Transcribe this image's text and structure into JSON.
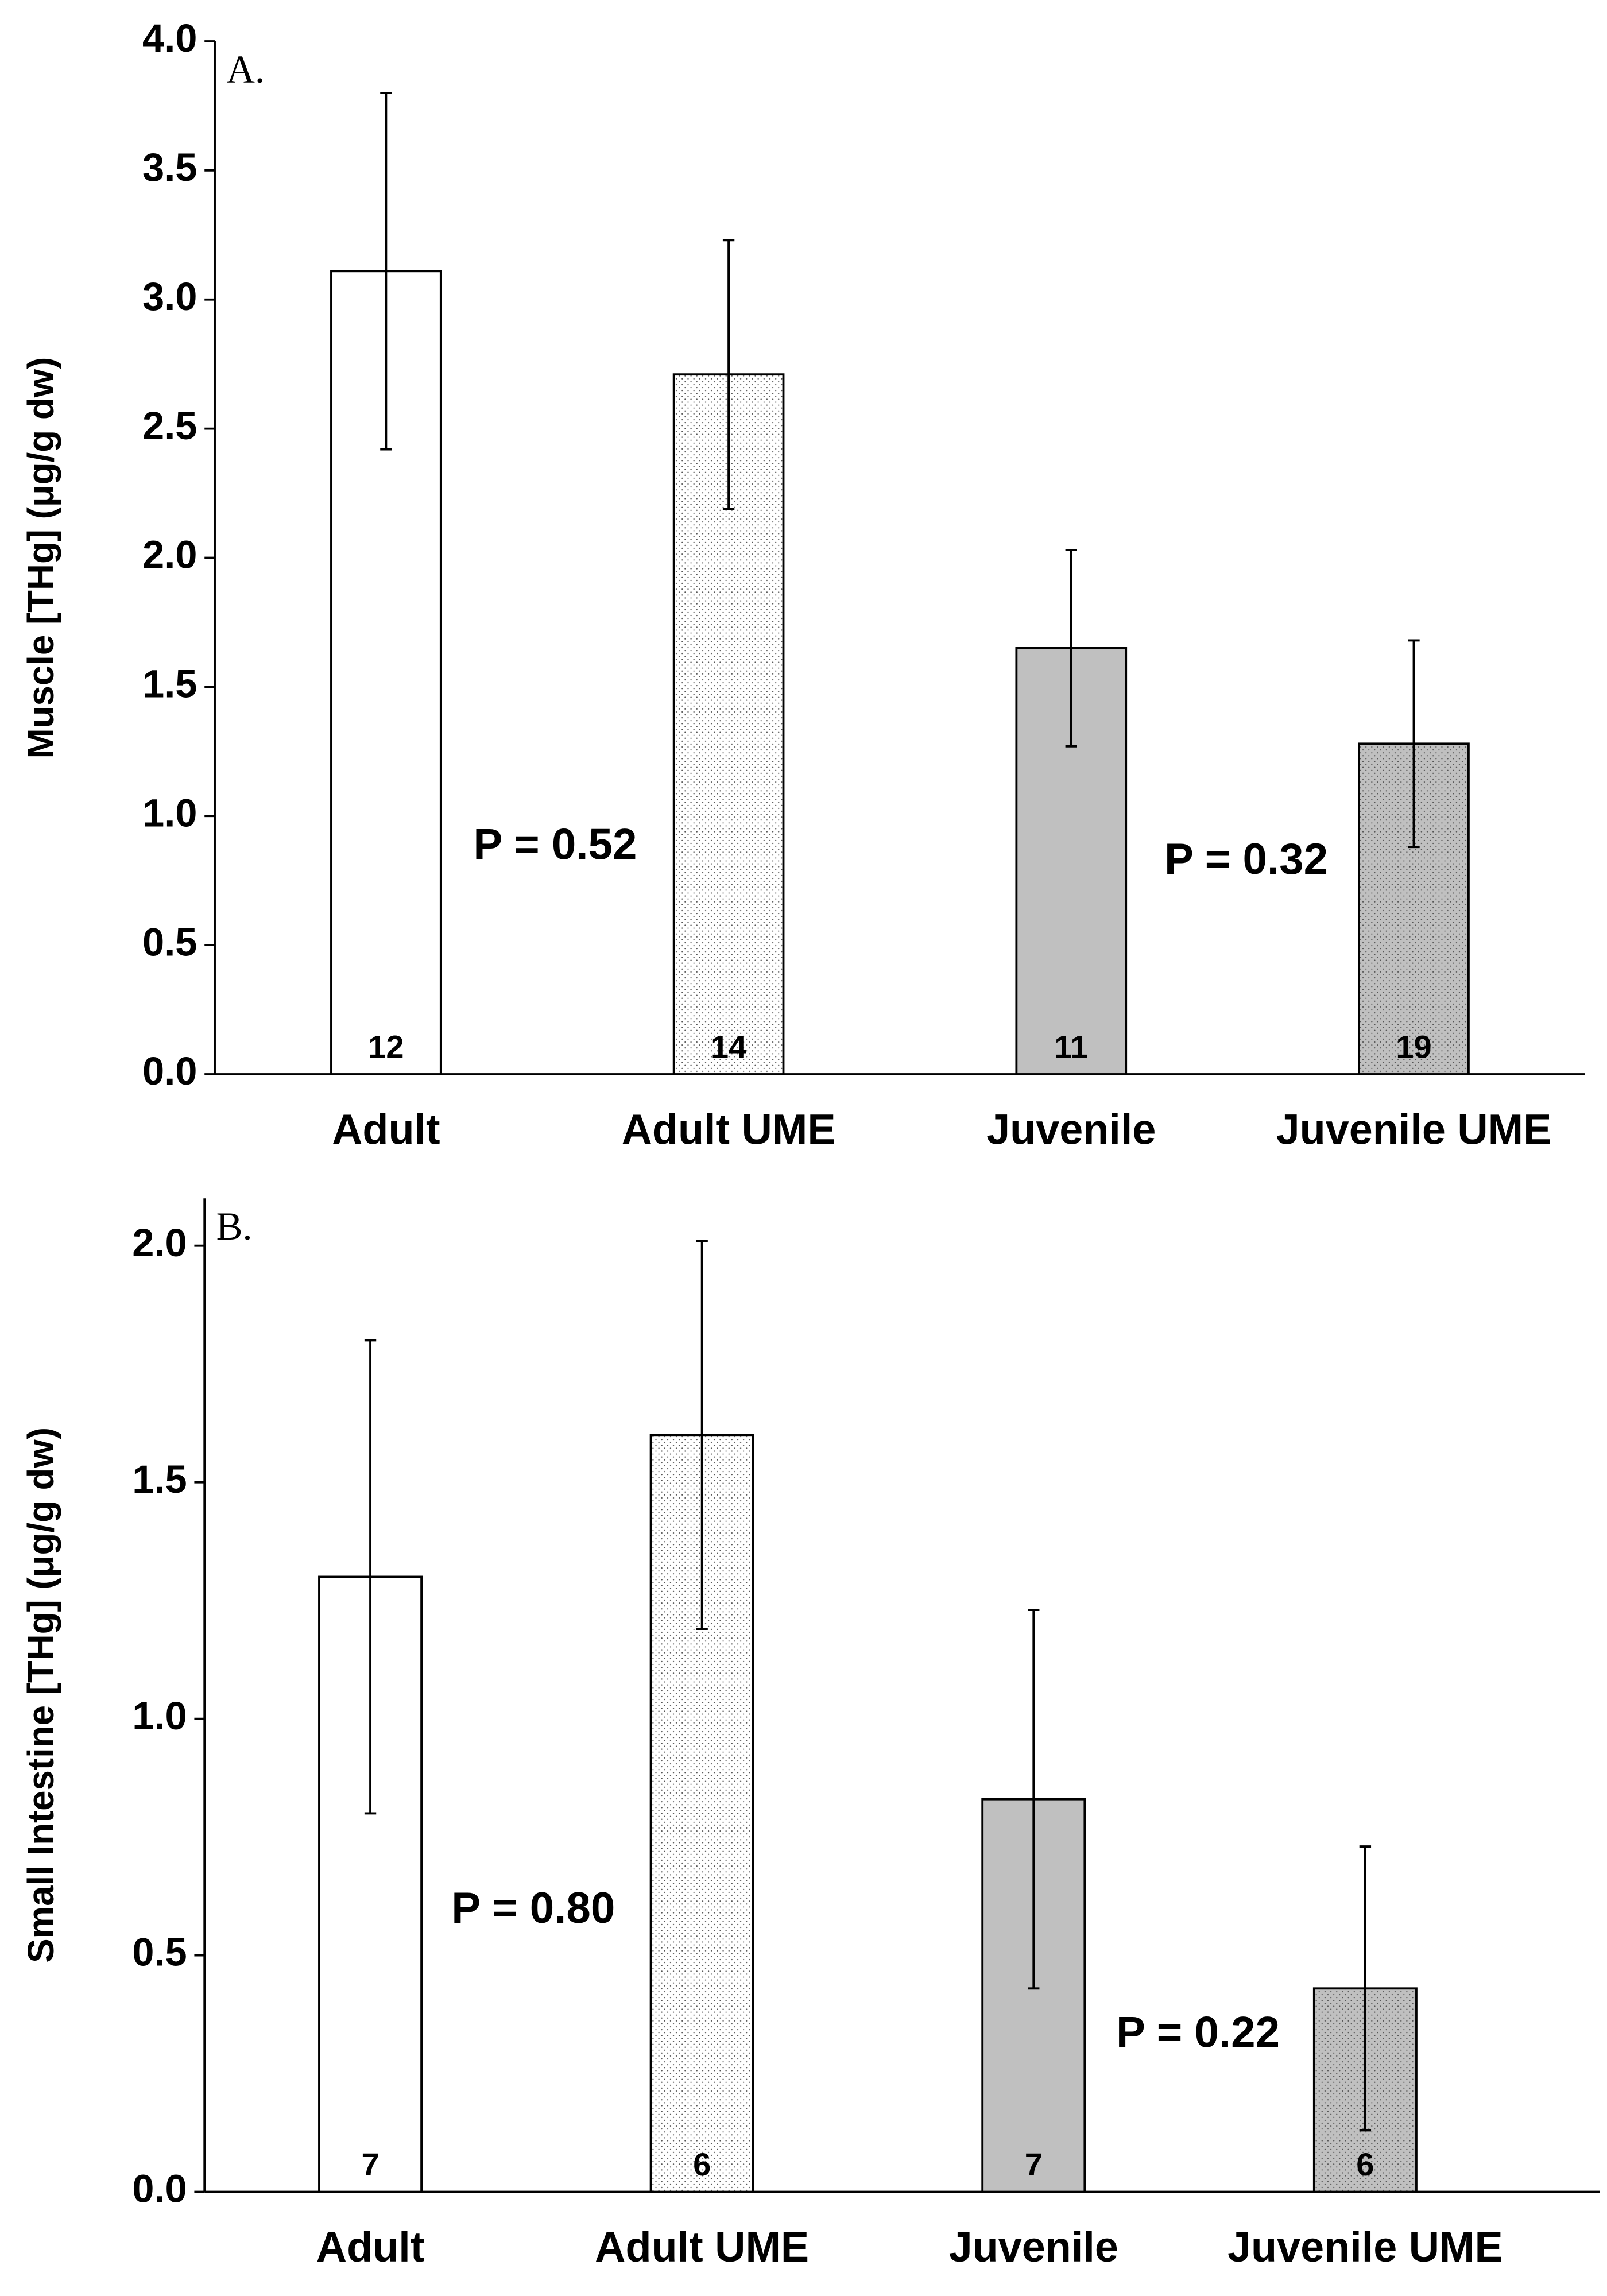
{
  "chart_data": [
    {
      "type": "bar",
      "panel_label": "A.",
      "y_label": "Muscle [THg] (μg/g dw)",
      "categories": [
        "Adult",
        "Adult UME",
        "Juvenile",
        "Juvenile UME"
      ],
      "values": [
        3.11,
        2.71,
        1.65,
        1.28
      ],
      "errors": [
        0.69,
        0.52,
        0.38,
        0.4
      ],
      "sample_sizes": [
        12,
        14,
        11,
        19
      ],
      "colors": [
        "#ffffff",
        "#ffffff",
        "#c0c0c0",
        "#c0c0c0"
      ],
      "stippled": [
        false,
        true,
        false,
        true
      ],
      "annotations": [
        "P = 0.52",
        "P = 0.32"
      ],
      "ylim": [
        0,
        4
      ],
      "yticks": [
        {
          "value": 0,
          "label": "0.0"
        },
        {
          "value": 0.5,
          "label": "0.5"
        },
        {
          "value": 1,
          "label": "1.0"
        },
        {
          "value": 1.5,
          "label": "1.5"
        },
        {
          "value": 2,
          "label": "2.0"
        },
        {
          "value": 2.5,
          "label": "2.5"
        },
        {
          "value": 3,
          "label": "3.0"
        },
        {
          "value": 3.5,
          "label": "3.5"
        },
        {
          "value": 4,
          "label": "4.0"
        }
      ]
    },
    {
      "type": "bar",
      "panel_label": "B.",
      "y_label": "Small Intestine [THg] (μg/g dw)",
      "categories": [
        "Adult",
        "Adult UME",
        "Juvenile",
        "Juvenile UME"
      ],
      "values": [
        1.3,
        1.6,
        0.83,
        0.43
      ],
      "errors": [
        0.5,
        0.41,
        0.4,
        0.3
      ],
      "sample_sizes": [
        7,
        6,
        7,
        6
      ],
      "colors": [
        "#ffffff",
        "#ffffff",
        "#c0c0c0",
        "#c0c0c0"
      ],
      "stippled": [
        false,
        true,
        false,
        true
      ],
      "annotations": [
        "P = 0.80",
        "P = 0.22"
      ],
      "ylim": [
        0,
        2.1
      ],
      "yticks": [
        {
          "value": 0,
          "label": "0.0"
        },
        {
          "value": 0.5,
          "label": "0.5"
        },
        {
          "value": 1,
          "label": "1.0"
        },
        {
          "value": 1.5,
          "label": "1.5"
        },
        {
          "value": 2,
          "label": "2.0"
        }
      ]
    }
  ]
}
